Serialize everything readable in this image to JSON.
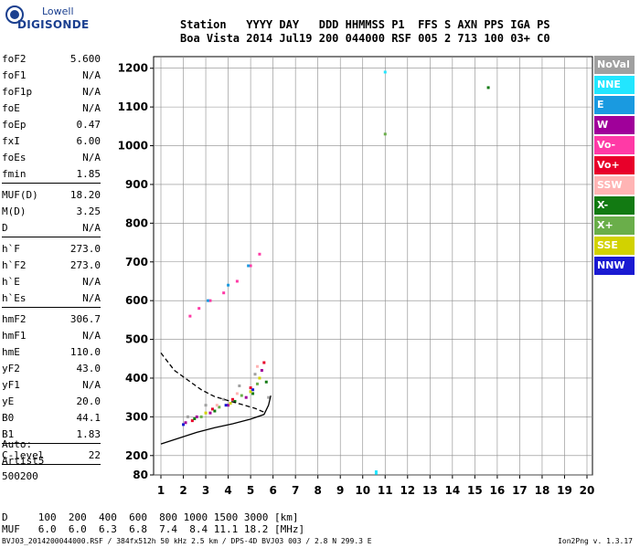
{
  "logo": {
    "line1": "Lowell",
    "line2": "DIGISONDE"
  },
  "header": {
    "line1": "Station   YYYY DAY   DDD HHMMSS P1  FFS S AXN PPS IGA PS",
    "line2": "Boa Vista 2014 Jul19 200 044000 RSF 005 2 713 100 03+ C0"
  },
  "params": [
    {
      "k": "foF2",
      "v": "5.600"
    },
    {
      "k": "foF1",
      "v": "N/A"
    },
    {
      "k": "foF1p",
      "v": "N/A"
    },
    {
      "k": "foE",
      "v": "N/A"
    },
    {
      "k": "foEp",
      "v": "0.47"
    },
    {
      "k": "fxI",
      "v": "6.00"
    },
    {
      "k": "foEs",
      "v": "N/A"
    },
    {
      "k": "fmin",
      "v": "1.85"
    },
    {
      "k": "MUF(D)",
      "v": "18.20"
    },
    {
      "k": "M(D)",
      "v": "3.25"
    },
    {
      "k": "D",
      "v": "N/A"
    },
    {
      "k": "h`F",
      "v": "273.0"
    },
    {
      "k": "h`F2",
      "v": "273.0"
    },
    {
      "k": "h`E",
      "v": "N/A"
    },
    {
      "k": "h`Es",
      "v": "N/A"
    },
    {
      "k": "hmF2",
      "v": "306.7"
    },
    {
      "k": "hmF1",
      "v": "N/A"
    },
    {
      "k": "hmE",
      "v": "110.0"
    },
    {
      "k": "yF2",
      "v": "43.0"
    },
    {
      "k": "yF1",
      "v": "N/A"
    },
    {
      "k": "yE",
      "v": "20.0"
    },
    {
      "k": "B0",
      "v": "44.1"
    },
    {
      "k": "B1",
      "v": "1.83"
    },
    {
      "k": "C-level",
      "v": "22"
    }
  ],
  "auto": {
    "line1": "Auto:",
    "line2": "Artist5",
    "line3": "500200"
  },
  "bottom_table": {
    "row1": "D     100  200  400  600  800 1000 1500 3000 [km]",
    "row2": "MUF   6.0  6.0  6.3  6.8  7.4  8.4 11.1 18.2 [MHz]"
  },
  "footer": {
    "left": "BVJ03_2014200044000.RSF / 384fx512h 50 kHz 2.5 km / DPS-4D BVJ03 003 / 2.8 N 299.3 E",
    "right": "Ion2Png v. 1.3.17"
  },
  "legend": [
    {
      "label": "NoVal",
      "color": "#a0a0a0"
    },
    {
      "label": "NNE",
      "color": "#22e6ff"
    },
    {
      "label": "E",
      "color": "#1a9ae0"
    },
    {
      "label": "W",
      "color": "#a0009a"
    },
    {
      "label": "Vo-",
      "color": "#ff3aa6"
    },
    {
      "label": "Vo+",
      "color": "#e8002a"
    },
    {
      "label": "SSW",
      "color": "#ffb4b4"
    },
    {
      "label": "X-",
      "color": "#127a12"
    },
    {
      "label": "X+",
      "color": "#6aae4a"
    },
    {
      "label": "SSE",
      "color": "#d2d200"
    },
    {
      "label": "NNW",
      "color": "#1a1ad2"
    }
  ],
  "chart_data": {
    "type": "scatter",
    "xlabel": "",
    "ylabel": "",
    "xlim": [
      1,
      20
    ],
    "ylim": [
      80,
      1200
    ],
    "x_ticks": [
      1,
      2,
      3,
      4,
      5,
      6,
      7,
      8,
      9,
      10,
      11,
      12,
      13,
      14,
      15,
      16,
      17,
      18,
      19,
      20
    ],
    "y_ticks": [
      80,
      200,
      300,
      400,
      500,
      600,
      700,
      800,
      900,
      1000,
      1100,
      1200
    ],
    "grid": true,
    "series": [
      {
        "name": "NoVal",
        "points": [
          [
            2.2,
            300
          ],
          [
            3.0,
            330
          ],
          [
            3.8,
            345
          ],
          [
            4.5,
            380
          ],
          [
            5.2,
            410
          ],
          [
            5.8,
            350
          ]
        ]
      },
      {
        "name": "W",
        "points": [
          [
            2.1,
            285
          ],
          [
            2.6,
            300
          ],
          [
            3.2,
            310
          ],
          [
            4.0,
            330
          ],
          [
            4.8,
            350
          ],
          [
            5.5,
            420
          ]
        ]
      },
      {
        "name": "Vo-",
        "points": [
          [
            2.3,
            560
          ],
          [
            2.7,
            580
          ],
          [
            3.2,
            600
          ],
          [
            3.8,
            620
          ],
          [
            4.4,
            650
          ],
          [
            5.0,
            690
          ],
          [
            5.4,
            720
          ]
        ]
      },
      {
        "name": "Vo+",
        "points": [
          [
            2.4,
            290
          ],
          [
            3.3,
            320
          ],
          [
            4.2,
            345
          ],
          [
            5.0,
            375
          ],
          [
            5.6,
            440
          ]
        ]
      },
      {
        "name": "X-",
        "points": [
          [
            2.5,
            295
          ],
          [
            3.4,
            315
          ],
          [
            4.3,
            340
          ],
          [
            5.1,
            360
          ],
          [
            5.7,
            390
          ],
          [
            15.6,
            1150
          ]
        ]
      },
      {
        "name": "X+",
        "points": [
          [
            2.8,
            300
          ],
          [
            3.6,
            325
          ],
          [
            4.6,
            355
          ],
          [
            5.3,
            385
          ],
          [
            11.0,
            1030
          ]
        ]
      },
      {
        "name": "SSE",
        "points": [
          [
            3.0,
            310
          ],
          [
            4.1,
            335
          ],
          [
            5.0,
            365
          ],
          [
            5.4,
            400
          ]
        ]
      },
      {
        "name": "NNE",
        "points": [
          [
            10.6,
            90
          ],
          [
            10.6,
            100
          ],
          [
            11.0,
            1190
          ]
        ]
      },
      {
        "name": "E",
        "points": [
          [
            3.1,
            600
          ],
          [
            4.0,
            640
          ],
          [
            4.9,
            690
          ]
        ]
      },
      {
        "name": "SSW",
        "points": [
          [
            3.5,
            330
          ],
          [
            4.4,
            360
          ],
          [
            5.3,
            430
          ]
        ]
      },
      {
        "name": "NNW",
        "points": [
          [
            2.0,
            280
          ],
          [
            3.9,
            330
          ],
          [
            5.1,
            370
          ]
        ]
      }
    ],
    "profile_curve": [
      [
        1.0,
        465
      ],
      [
        1.6,
        420
      ],
      [
        2.2,
        395
      ],
      [
        2.8,
        370
      ],
      [
        3.4,
        352
      ],
      [
        4.0,
        342
      ],
      [
        4.6,
        332
      ],
      [
        5.2,
        322
      ],
      [
        5.6,
        312
      ]
    ],
    "trace_curve": [
      [
        1.0,
        230
      ],
      [
        1.8,
        245
      ],
      [
        2.6,
        260
      ],
      [
        3.4,
        272
      ],
      [
        4.2,
        282
      ],
      [
        5.0,
        294
      ],
      [
        5.6,
        306
      ],
      [
        5.8,
        330
      ],
      [
        5.9,
        355
      ]
    ]
  }
}
